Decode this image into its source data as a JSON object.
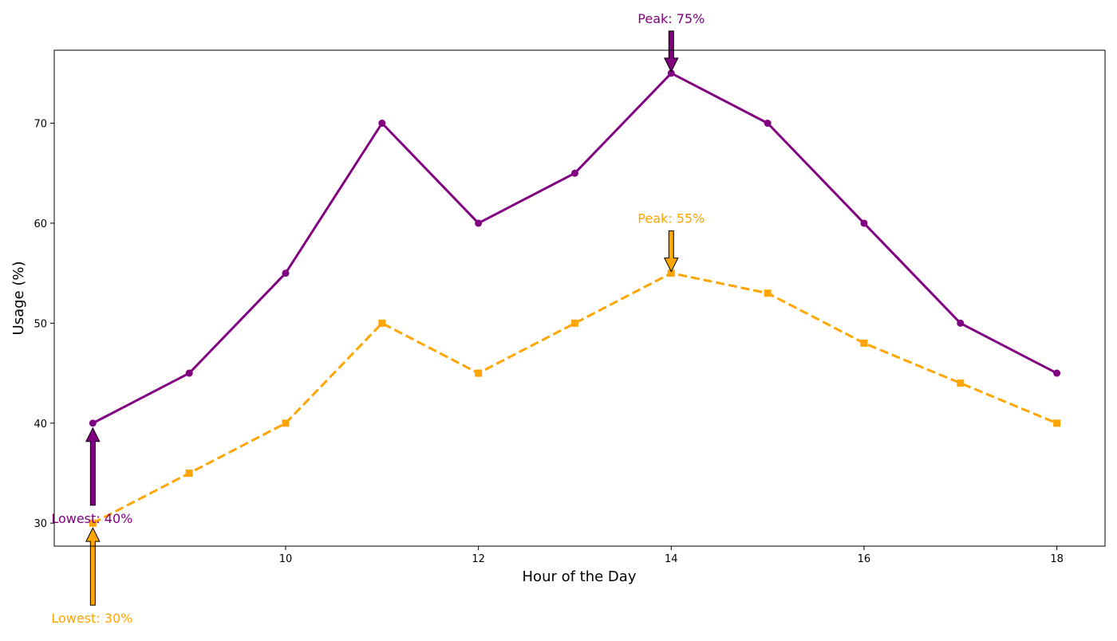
{
  "chart_data": {
    "type": "line",
    "title": "",
    "xlabel": "Hour of the Day",
    "ylabel": "Usage (%)",
    "x": [
      8,
      9,
      10,
      11,
      12,
      13,
      14,
      15,
      16,
      17,
      18
    ],
    "xlim": [
      7.6,
      18.5
    ],
    "ylim": [
      27.7,
      77.3
    ],
    "xticks": [
      8,
      10,
      12,
      14,
      16,
      18
    ],
    "yticks": [
      30,
      40,
      50,
      60,
      70
    ],
    "xtick_labels": [
      "8",
      "10",
      "12",
      "14",
      "16",
      "18"
    ],
    "ytick_labels": [
      "30",
      "40",
      "50",
      "60",
      "70"
    ],
    "grid": false,
    "legend": "none",
    "series": [
      {
        "values": [
          40,
          45,
          55,
          70,
          60,
          65,
          75,
          70,
          60,
          50,
          45
        ],
        "color": "#800080",
        "line_style": "solid",
        "marker": "circle"
      },
      {
        "values": [
          30,
          35,
          40,
          50,
          45,
          50,
          55,
          53,
          48,
          44,
          40
        ],
        "color": "#FFA500",
        "line_style": "dashed",
        "marker": "square"
      }
    ],
    "annotations": [
      {
        "series": 0,
        "x": 14,
        "y": 75,
        "text": "Peak: 75%",
        "direction": "down"
      },
      {
        "series": 1,
        "x": 14,
        "y": 55,
        "text": "Peak: 55%",
        "direction": "down"
      },
      {
        "series": 0,
        "x": 8,
        "y": 40,
        "text": "Lowest: 40%",
        "direction": "up"
      },
      {
        "series": 1,
        "x": 8,
        "y": 30,
        "text": "Lowest: 30%",
        "direction": "up"
      }
    ]
  }
}
